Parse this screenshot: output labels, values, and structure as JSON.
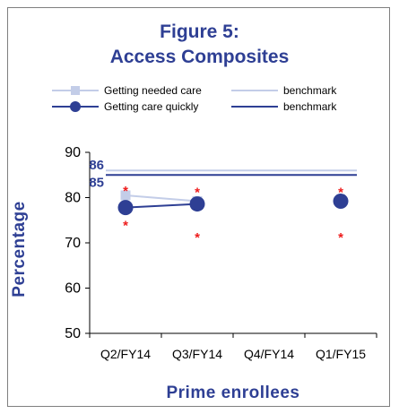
{
  "chart_data": {
    "type": "line",
    "title": "Figure 5:",
    "subtitle": "Access Composites",
    "xlabel": "Prime enrollees",
    "ylabel": "Percentage",
    "ylim": [
      50,
      90
    ],
    "yticks": [
      50,
      60,
      70,
      80,
      90
    ],
    "categories": [
      "Q2/FY14",
      "Q3/FY14",
      "Q4/FY14",
      "Q1/FY15"
    ],
    "series": [
      {
        "name": "Getting needed care",
        "values": [
          80.5,
          79.2,
          null,
          79.2
        ],
        "color": "#c3cde8",
        "marker": "square"
      },
      {
        "name": "Getting care quickly",
        "values": [
          77.8,
          78.6,
          null,
          79.2
        ],
        "color": "#2e3f94",
        "marker": "circle"
      }
    ],
    "benchmarks": [
      {
        "name": "benchmark",
        "value": 86,
        "label": "86",
        "color": "#c3cde8"
      },
      {
        "name": "benchmark",
        "value": 85,
        "label": "85",
        "color": "#2e3f94"
      }
    ],
    "significance_markers": [
      {
        "category": "Q2/FY14",
        "value": 82.1,
        "text": "*"
      },
      {
        "category": "Q2/FY14",
        "value": 74.5,
        "text": "*"
      },
      {
        "category": "Q3/FY14",
        "value": 81.8,
        "text": "*"
      },
      {
        "category": "Q3/FY14",
        "value": 71.8,
        "text": "*"
      },
      {
        "category": "Q1/FY15",
        "value": 81.8,
        "text": "*"
      },
      {
        "category": "Q1/FY15",
        "value": 71.8,
        "text": "*"
      }
    ],
    "legend_position": "top",
    "grid": false
  }
}
